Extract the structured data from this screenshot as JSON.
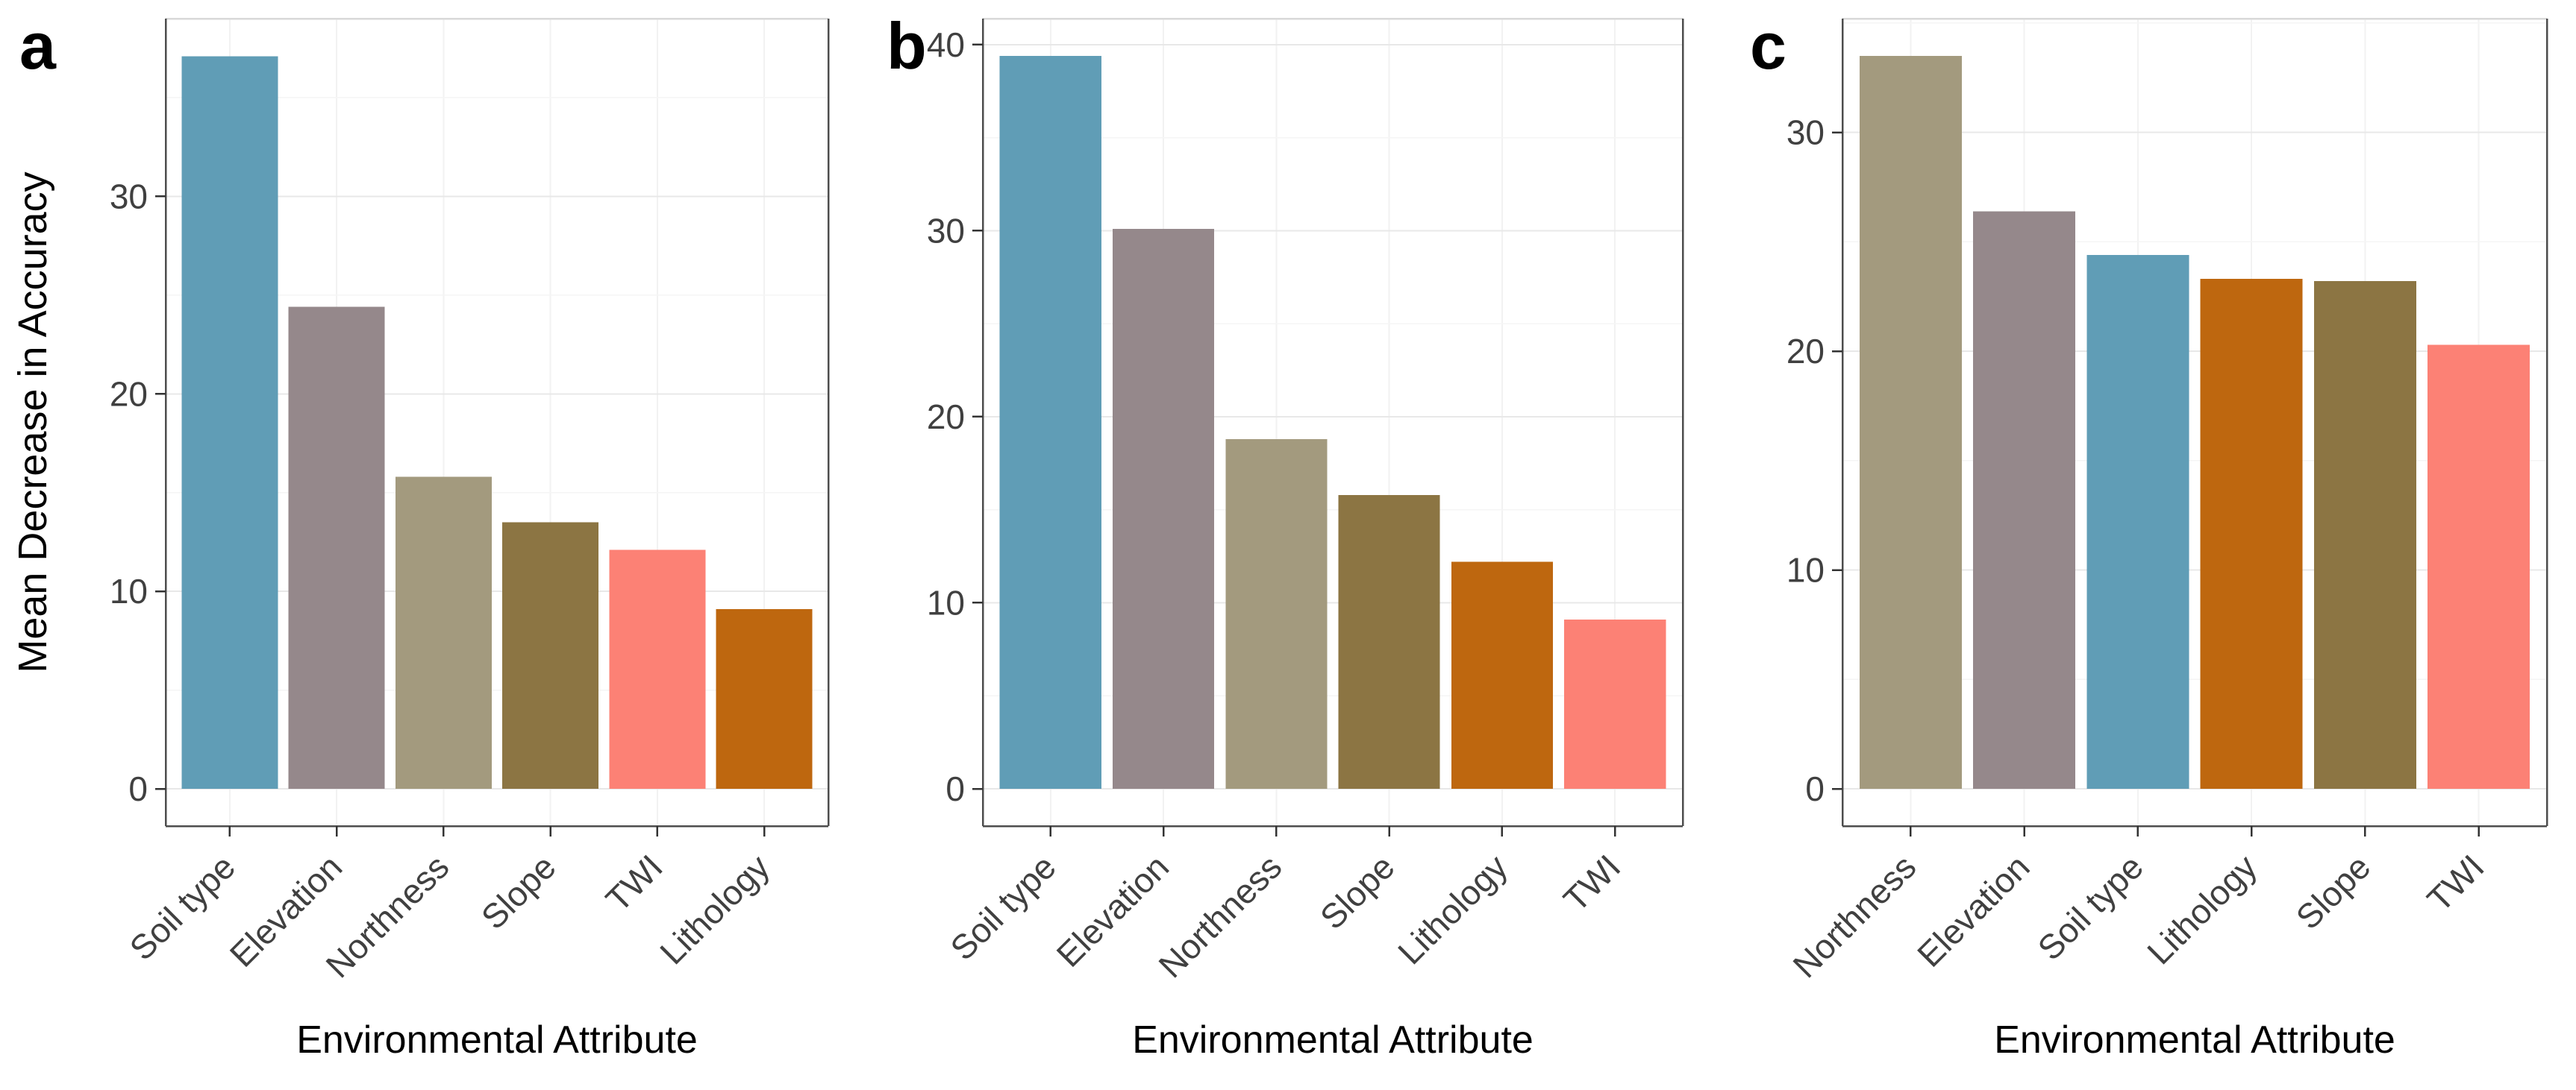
{
  "figure": {
    "xlabel": "Environmental Attribute",
    "ylabel": "Mean Decrease in Accuracy",
    "background_color": "#FFFFFF",
    "panel_border_color": "#4D4D4D",
    "panel_top_border_color": "#D9D9D9",
    "grid_major_color": "#E8E8E8",
    "grid_minor_color": "#F5F5F5",
    "grid_vertical_color": "#F2F2F2",
    "tick_mark_color": "#333333",
    "tick_label_color": "#404040",
    "axis_title_color": "#000000"
  },
  "palette": {
    "Soil type": "#609DB6",
    "Elevation": "#95888B",
    "Northness": "#A39A7E",
    "Slope": "#8C7543",
    "TWI": "#FC8175",
    "Lithology": "#BE670F"
  },
  "chart_data": [
    {
      "type": "bar",
      "panel_label": "a",
      "xlabel": "Environmental Attribute",
      "ylabel": "Mean Decrease in Accuracy",
      "categories": [
        "Soil type",
        "Elevation",
        "Northness",
        "Slope",
        "TWI",
        "Lithology"
      ],
      "values": [
        37.1,
        24.4,
        15.8,
        13.5,
        12.1,
        9.1
      ],
      "yticks": [
        0,
        10,
        20,
        30
      ],
      "ylim": [
        0,
        39.0
      ],
      "bar_width_fraction": 0.9,
      "grid": true,
      "legend": false,
      "tick_label_angle": 45
    },
    {
      "type": "bar",
      "panel_label": "b",
      "xlabel": "Environmental Attribute",
      "ylabel": "",
      "categories": [
        "Soil type",
        "Elevation",
        "Northness",
        "Slope",
        "Lithology",
        "TWI"
      ],
      "values": [
        39.4,
        30.1,
        18.8,
        15.8,
        12.2,
        9.1
      ],
      "yticks": [
        0,
        10,
        20,
        30,
        40
      ],
      "ylim": [
        0,
        41.4
      ],
      "bar_width_fraction": 0.9,
      "grid": true,
      "legend": false,
      "tick_label_angle": 45
    },
    {
      "type": "bar",
      "panel_label": "c",
      "xlabel": "Environmental Attribute",
      "ylabel": "",
      "categories": [
        "Northness",
        "Elevation",
        "Soil type",
        "Lithology",
        "Slope",
        "TWI"
      ],
      "values": [
        33.5,
        26.4,
        24.4,
        23.3,
        23.2,
        20.3
      ],
      "yticks": [
        0,
        10,
        20,
        30
      ],
      "ylim": [
        0,
        35.2
      ],
      "bar_width_fraction": 0.9,
      "grid": true,
      "legend": false,
      "tick_label_angle": 45
    }
  ]
}
